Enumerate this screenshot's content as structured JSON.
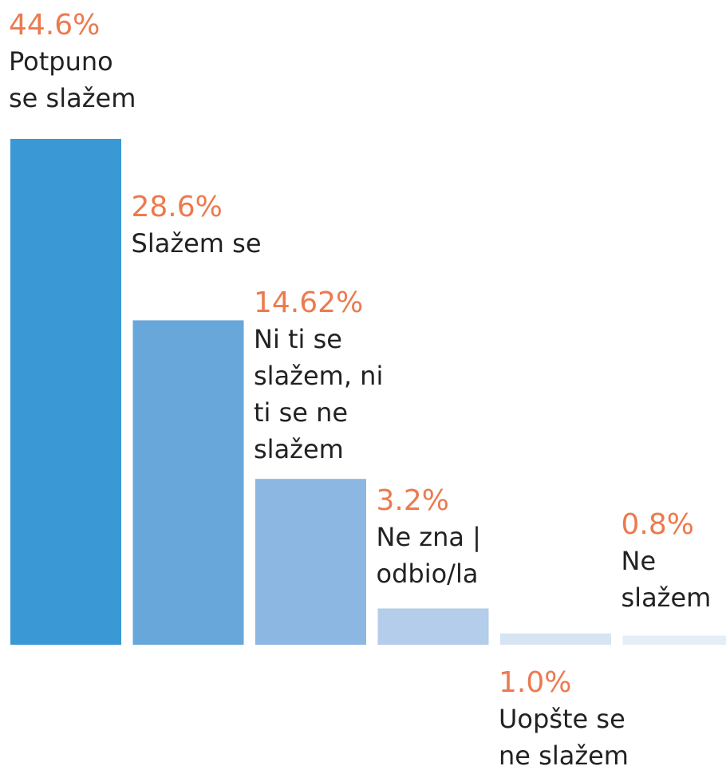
{
  "chart_data": {
    "type": "bar",
    "categories": [
      "Potpuno se slažem",
      "Slažem se",
      "Ni ti se slažem, ni ti se ne slažem",
      "Ne zna | odbio/la",
      "Uopšte se ne slažem",
      "Ne slažem"
    ],
    "values": [
      44.6,
      28.6,
      14.62,
      3.2,
      1.0,
      0.8
    ],
    "value_labels": [
      "44.6%",
      "28.6%",
      "14.62%",
      "3.2%",
      "1.0%",
      "0.8%"
    ],
    "colors": [
      "#3a98d4",
      "#67a7d9",
      "#8cb7e2",
      "#b3cdea",
      "#d6e4f3",
      "#e5edf7"
    ],
    "ylim": [
      0,
      50
    ]
  }
}
